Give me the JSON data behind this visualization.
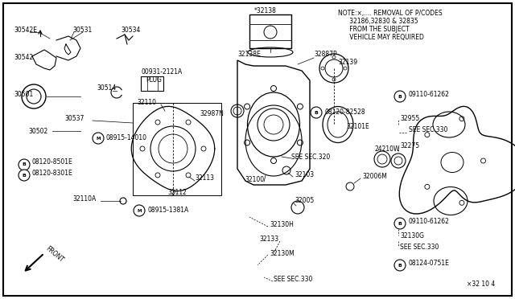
{
  "bg_color": "#f0f0f0",
  "border_color": "#000000",
  "text_color": "#1a1a1a",
  "note_lines": [
    "NOTE:×,.... REMOVAL OF P/CODES",
    "      32186,32830 & 32835",
    "      FROM THE SUBJECT",
    "      VEHICLE MAY REQUIRED"
  ],
  "page_ref": "×32 10 4",
  "figsize": [
    6.4,
    3.72
  ],
  "dpi": 100
}
